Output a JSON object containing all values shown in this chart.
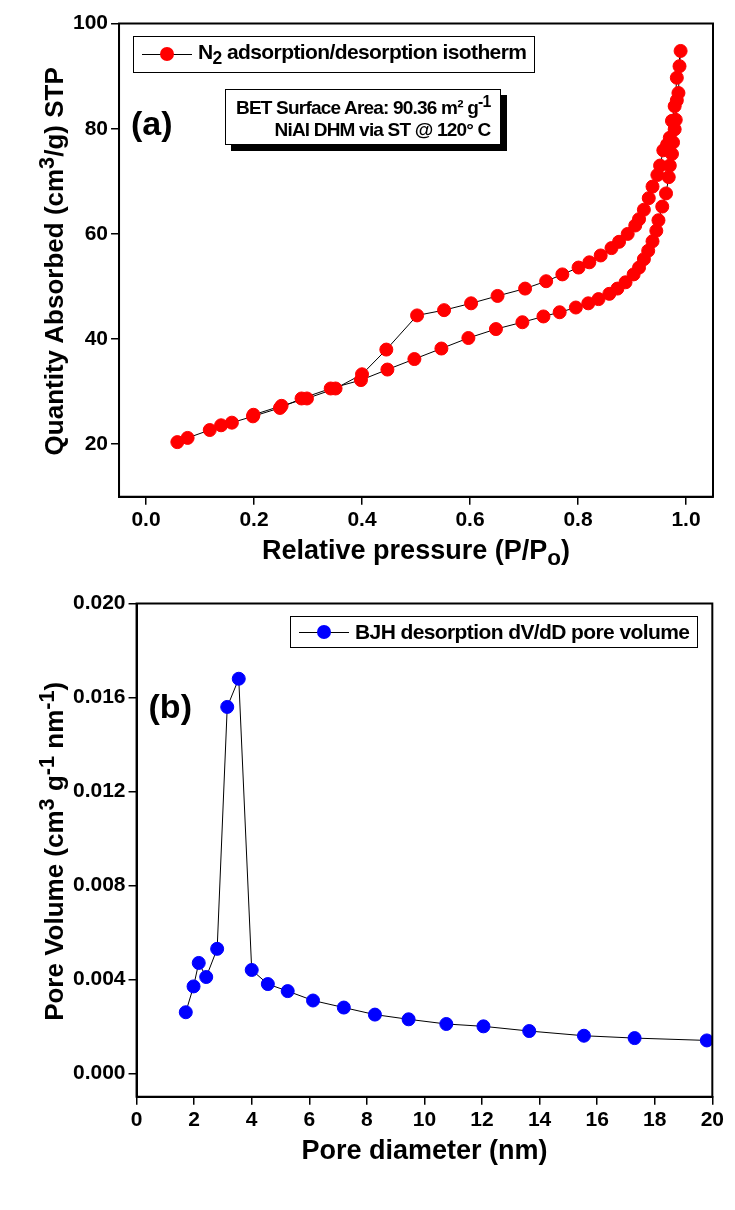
{
  "chart_data": [
    {
      "type": "line",
      "xlabel": "Relative pressure (P/P$_{o}$)",
      "ylabel": "Quantity Absorbed (cm$^{3}$/g) STP",
      "annotations": [
        "(a)",
        "BET Surface Area: 90.36 m² g$^{-1}$",
        "NiAl DHM via ST @ 120° C"
      ],
      "series": [
        {
          "name": "N$_{2}$ adsorption/desorption isotherm",
          "color": "#ff0000",
          "x": [
            0.058,
            0.077,
            0.118,
            0.139,
            0.159,
            0.198,
            0.248,
            0.288,
            0.342,
            0.398,
            0.447,
            0.497,
            0.547,
            0.597,
            0.648,
            0.697,
            0.736,
            0.766,
            0.796,
            0.819,
            0.838,
            0.858,
            0.873,
            0.888,
            0.903,
            0.913,
            0.922,
            0.93,
            0.938,
            0.945,
            0.949,
            0.956,
            0.963,
            0.968,
            0.97,
            0.974,
            0.976,
            0.979,
            0.981,
            0.983,
            0.986,
            0.988,
            0.99,
            0.983,
            0.979,
            0.974,
            0.97,
            0.965,
            0.958,
            0.952,
            0.947,
            0.938,
            0.931,
            0.922,
            0.913,
            0.906,
            0.892,
            0.876,
            0.862,
            0.842,
            0.821,
            0.801,
            0.771,
            0.741,
            0.702,
            0.651,
            0.602,
            0.552,
            0.502,
            0.445,
            0.4,
            0.351,
            0.298,
            0.251,
            0.199
          ],
          "values": [
            20.4,
            21.2,
            22.7,
            23.6,
            24.1,
            25.3,
            26.9,
            28.7,
            30.6,
            32.2,
            34.2,
            36.2,
            38.2,
            40.2,
            41.9,
            43.2,
            44.3,
            45.1,
            46.0,
            46.8,
            47.6,
            48.6,
            49.6,
            50.8,
            52.3,
            53.6,
            55.2,
            56.8,
            58.6,
            60.6,
            62.6,
            65.2,
            67.7,
            70.8,
            73.0,
            75.2,
            77.4,
            79.9,
            81.7,
            85.4,
            86.8,
            91.9,
            94.8,
            89.7,
            84.3,
            81.5,
            78.3,
            77.0,
            75.9,
            73.0,
            71.2,
            69.0,
            66.8,
            64.6,
            62.8,
            61.6,
            60.0,
            58.5,
            57.3,
            55.9,
            54.6,
            53.6,
            52.3,
            51.0,
            49.6,
            48.2,
            46.8,
            45.5,
            44.5,
            38.0,
            33.3,
            30.6,
            28.7,
            27.3,
            25.6
          ]
        }
      ],
      "xlim": [
        -0.05,
        1.05
      ],
      "xticks": [
        {
          "value": 0,
          "label": "0.0"
        },
        {
          "value": 0.2,
          "label": "0.2"
        },
        {
          "value": 0.4,
          "label": "0.4"
        },
        {
          "value": 0.6,
          "label": "0.6"
        },
        {
          "value": 0.8,
          "label": "0.8"
        },
        {
          "value": 1,
          "label": "1.0"
        }
      ],
      "ylim": [
        10,
        100
      ],
      "yticks": [
        20,
        40,
        60,
        80,
        100
      ],
      "grid": false,
      "legend": "top left",
      "marker": "circle",
      "line_style": "solid"
    },
    {
      "type": "line",
      "xlabel": "Pore diameter (nm)",
      "ylabel": "Pore Volume (cm$^{3}$ g$^{-1}$ nm$^{-1}$)",
      "annotations": [
        "(b)"
      ],
      "series": [
        {
          "name": "BJH desorption dV/dD pore volume",
          "color": "#0000ff",
          "x": [
            1.71,
            1.98,
            2.16,
            2.42,
            2.8,
            3.15,
            3.55,
            4.0,
            4.56,
            5.25,
            6.13,
            7.2,
            8.28,
            9.45,
            10.76,
            12.05,
            13.64,
            15.54,
            17.3,
            19.81
          ],
          "values": [
            0.0026,
            0.0037,
            0.0047,
            0.0041,
            0.0053,
            0.0156,
            0.0168,
            0.0044,
            0.0038,
            0.0035,
            0.0031,
            0.0028,
            0.0025,
            0.0023,
            0.0021,
            0.002,
            0.0018,
            0.0016,
            0.0015,
            0.0014
          ]
        }
      ],
      "xlim": [
        0,
        20
      ],
      "xticks": [
        0,
        2,
        4,
        6,
        8,
        10,
        12,
        14,
        16,
        18,
        20
      ],
      "ylim": [
        -0.001,
        0.02
      ],
      "yticks": [
        {
          "value": 0,
          "label": "0.000"
        },
        {
          "value": 0.004,
          "label": "0.004"
        },
        {
          "value": 0.008,
          "label": "0.008"
        },
        {
          "value": 0.012,
          "label": "0.012"
        },
        {
          "value": 0.016,
          "label": "0.016"
        },
        {
          "value": 0.02,
          "label": "0.020"
        }
      ],
      "grid": false,
      "legend": "top right",
      "marker": "circle",
      "line_style": "solid"
    }
  ]
}
